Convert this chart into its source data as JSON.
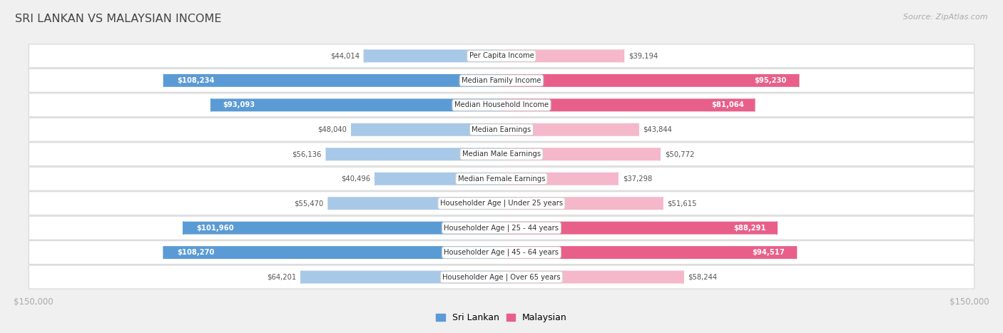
{
  "title": "SRI LANKAN VS MALAYSIAN INCOME",
  "source": "Source: ZipAtlas.com",
  "categories": [
    "Per Capita Income",
    "Median Family Income",
    "Median Household Income",
    "Median Earnings",
    "Median Male Earnings",
    "Median Female Earnings",
    "Householder Age | Under 25 years",
    "Householder Age | 25 - 44 years",
    "Householder Age | 45 - 64 years",
    "Householder Age | Over 65 years"
  ],
  "sri_lankan": [
    44014,
    108234,
    93093,
    48040,
    56136,
    40496,
    55470,
    101960,
    108270,
    64201
  ],
  "malaysian": [
    39194,
    95230,
    81064,
    43844,
    50772,
    37298,
    51615,
    88291,
    94517,
    58244
  ],
  "max_val": 150000,
  "sl_color_light": "#a8c8e8",
  "sl_color_dark": "#5b9bd5",
  "ml_color_light": "#f5b8cb",
  "ml_color_dark": "#e8608a",
  "bar_height": 0.52,
  "bg_color": "#f0f0f0",
  "row_bg_color": "#ffffff",
  "label_box_color": "#ffffff",
  "label_box_edge": "#cccccc",
  "title_color": "#444444",
  "source_color": "#aaaaaa",
  "axis_label_color": "#aaaaaa",
  "value_text_dark": "#555555",
  "value_text_light": "#ffffff",
  "sl_threshold": 80000,
  "ml_threshold": 80000,
  "legend_sri_color": "#5b9bd5",
  "legend_mal_color": "#e8608a"
}
